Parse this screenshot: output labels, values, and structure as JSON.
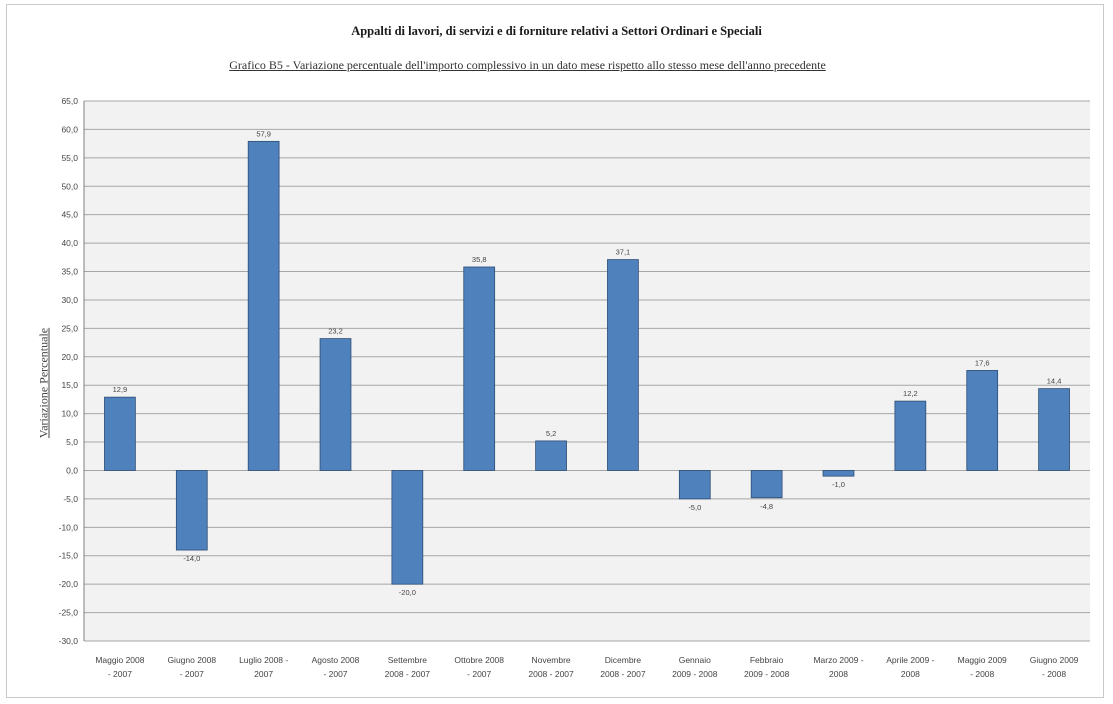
{
  "chart_data": {
    "type": "bar",
    "title": "Appalti di lavori, di servizi e di forniture relativi a Settori Ordinari e Speciali",
    "subtitle": "Grafico B5 - Variazione percentuale dell'importo complessivo in un dato mese rispetto allo stesso mese dell'anno precedente",
    "xlabel": "",
    "ylabel": "Variazione Percentuale",
    "ylim": [
      -30,
      65
    ],
    "ytick_step": 5,
    "grid": true,
    "bar_color": "#4f81bd",
    "categories": [
      [
        "Maggio 2008",
        "- 2007"
      ],
      [
        "Giugno 2008",
        "- 2007"
      ],
      [
        "Luglio 2008 -",
        "2007"
      ],
      [
        "Agosto 2008",
        "- 2007"
      ],
      [
        "Settembre",
        "2008 - 2007"
      ],
      [
        "Ottobre 2008",
        "- 2007"
      ],
      [
        "Novembre",
        "2008 - 2007"
      ],
      [
        "Dicembre",
        "2008 - 2007"
      ],
      [
        "Gennaio",
        "2009 - 2008"
      ],
      [
        "Febbraio",
        "2009 - 2008"
      ],
      [
        "Marzo 2009 -",
        "2008"
      ],
      [
        "Aprile 2009 -",
        "2008"
      ],
      [
        "Maggio 2009",
        "- 2008"
      ],
      [
        "Giugno 2009",
        "- 2008"
      ]
    ],
    "values": [
      12.9,
      -14.0,
      57.9,
      23.2,
      -20.0,
      35.8,
      5.2,
      37.1,
      -5.0,
      -4.8,
      -1.0,
      12.2,
      17.6,
      14.4
    ],
    "data_labels": [
      "12,9",
      "-14,0",
      "57,9",
      "23,2",
      "-20,0",
      "35,8",
      "5,2",
      "37,1",
      "-5,0",
      "-4,8",
      "-1,0",
      "12,2",
      "17,6",
      "14,4"
    ]
  }
}
